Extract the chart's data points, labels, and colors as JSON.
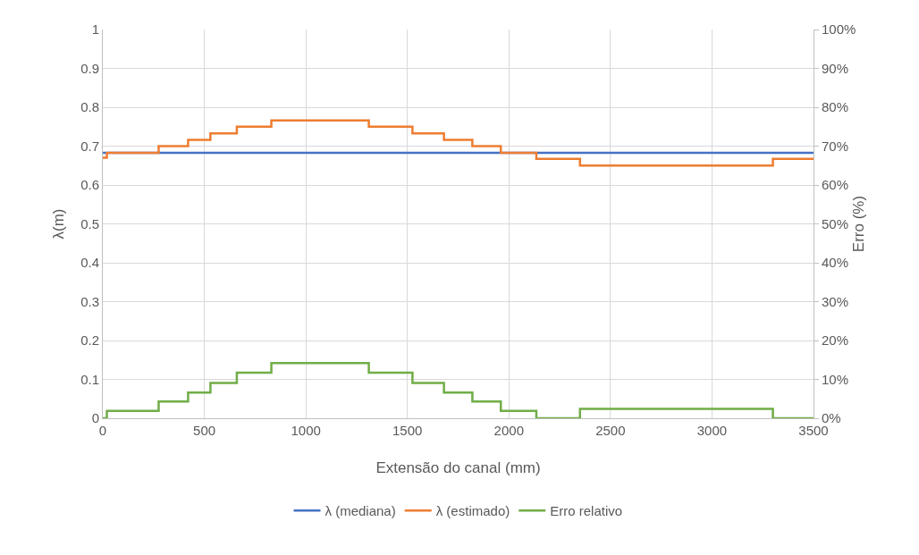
{
  "chart_data": {
    "type": "step",
    "xlabel": "Extensão do canal (mm)",
    "ylabel": "λ(m)",
    "y2label": "Erro (%)",
    "x": [
      0,
      20,
      275,
      420,
      530,
      660,
      830,
      1310,
      1525,
      1680,
      1820,
      1960,
      2135,
      2350,
      3300,
      3500
    ],
    "series": [
      {
        "name": "λ (mediana)",
        "color": "#4472c4",
        "x": [
          0,
          3500
        ],
        "values": [
          0.683,
          0.683
        ]
      },
      {
        "name": "λ (estimado)",
        "color": "#ed7d31",
        "values": [
          0.67,
          0.683,
          0.7,
          0.716,
          0.733,
          0.75,
          0.766,
          0.75,
          0.733,
          0.716,
          0.7,
          0.683,
          0.667,
          0.65,
          0.667,
          0.667
        ]
      },
      {
        "name": "Erro relativo",
        "color": "#70ad47",
        "axis": "y2",
        "values": [
          0,
          1.9,
          4.3,
          6.6,
          9.1,
          11.7,
          14.2,
          11.7,
          9.1,
          6.6,
          4.3,
          1.9,
          0,
          2.4,
          0,
          0
        ]
      }
    ],
    "xlim": [
      0,
      3500
    ],
    "xticks": [
      0,
      500,
      1000,
      1500,
      2000,
      2500,
      3000,
      3500
    ],
    "ylim": [
      0,
      1
    ],
    "yticks": [
      0,
      0.1,
      0.2,
      0.3,
      0.4,
      0.5,
      0.6,
      0.7,
      0.8,
      0.9,
      1
    ],
    "y2lim": [
      0,
      100
    ],
    "y2ticks": [
      {
        "value": 0,
        "label": "0%"
      },
      {
        "value": 10,
        "label": "10%"
      },
      {
        "value": 20,
        "label": "20%"
      },
      {
        "value": 30,
        "label": "30%"
      },
      {
        "value": 40,
        "label": "40%"
      },
      {
        "value": 50,
        "label": "50%"
      },
      {
        "value": 60,
        "label": "60%"
      },
      {
        "value": 70,
        "label": "70%"
      },
      {
        "value": 80,
        "label": "80%"
      },
      {
        "value": 90,
        "label": "90%"
      },
      {
        "value": 100,
        "label": "100%"
      }
    ],
    "grid": true,
    "legend": "bottom",
    "marker": "none",
    "line_style": "solid"
  }
}
